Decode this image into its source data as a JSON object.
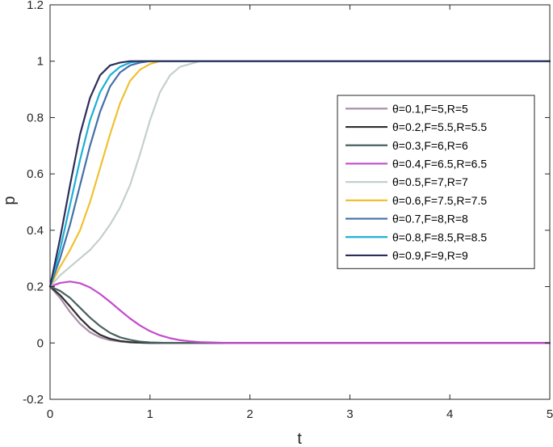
{
  "chart_data": {
    "type": "line",
    "title": "",
    "xlabel": "t",
    "ylabel": "p",
    "xlim": [
      0,
      5
    ],
    "ylim": [
      -0.2,
      1.2
    ],
    "xticks": [
      0,
      1,
      2,
      3,
      4,
      5
    ],
    "yticks": [
      -0.2,
      0,
      0.2,
      0.4,
      0.6,
      0.8,
      1,
      1.2
    ],
    "grid": false,
    "legend_position": "right",
    "x": [
      0,
      0.1,
      0.2,
      0.3,
      0.4,
      0.5,
      0.6,
      0.7,
      0.8,
      0.9,
      1.0,
      1.1,
      1.2,
      1.3,
      1.4,
      1.5,
      1.6,
      1.7,
      1.8,
      1.9,
      2.0,
      2.5,
      3.0,
      3.5,
      4.0,
      4.5,
      5.0
    ],
    "series": [
      {
        "name": "θ=0.1,F=5,R=5",
        "color": "#a98ea8",
        "values": [
          0.2,
          0.16,
          0.11,
          0.068,
          0.038,
          0.02,
          0.01,
          0.005,
          0.002,
          0.001,
          0,
          0,
          0,
          0,
          0,
          0,
          0,
          0,
          0,
          0,
          0,
          0,
          0,
          0,
          0,
          0,
          0
        ]
      },
      {
        "name": "θ=0.2,F=5.5,R=5.5",
        "color": "#2e2e2e",
        "values": [
          0.2,
          0.17,
          0.13,
          0.088,
          0.053,
          0.029,
          0.015,
          0.007,
          0.003,
          0.001,
          0,
          0,
          0,
          0,
          0,
          0,
          0,
          0,
          0,
          0,
          0,
          0,
          0,
          0,
          0,
          0,
          0
        ]
      },
      {
        "name": "θ=0.3,F=6,R=6",
        "color": "#4a6161",
        "values": [
          0.2,
          0.185,
          0.16,
          0.125,
          0.09,
          0.06,
          0.036,
          0.02,
          0.011,
          0.005,
          0.002,
          0.001,
          0,
          0,
          0,
          0,
          0,
          0,
          0,
          0,
          0,
          0,
          0,
          0,
          0,
          0,
          0
        ]
      },
      {
        "name": "θ=0.4,F=6.5,R=6.5",
        "color": "#c34bcb",
        "values": [
          0.2,
          0.213,
          0.218,
          0.212,
          0.197,
          0.174,
          0.146,
          0.116,
          0.087,
          0.062,
          0.042,
          0.027,
          0.017,
          0.01,
          0.006,
          0.003,
          0.002,
          0.001,
          0,
          0,
          0,
          0,
          0,
          0,
          0,
          0,
          0
        ]
      },
      {
        "name": "θ=0.5,F=7,R=7",
        "color": "#c3d0cc",
        "values": [
          0.2,
          0.24,
          0.27,
          0.3,
          0.33,
          0.37,
          0.42,
          0.48,
          0.56,
          0.67,
          0.79,
          0.89,
          0.95,
          0.98,
          0.99,
          1.0,
          1.0,
          1.0,
          1.0,
          1.0,
          1.0,
          1.0,
          1.0,
          1.0,
          1.0,
          1.0,
          1.0
        ]
      },
      {
        "name": "θ=0.6,F=7.5,R=7.5",
        "color": "#efc131",
        "values": [
          0.2,
          0.27,
          0.33,
          0.4,
          0.5,
          0.62,
          0.74,
          0.85,
          0.93,
          0.97,
          0.99,
          1.0,
          1.0,
          1.0,
          1.0,
          1.0,
          1.0,
          1.0,
          1.0,
          1.0,
          1.0,
          1.0,
          1.0,
          1.0,
          1.0,
          1.0,
          1.0
        ]
      },
      {
        "name": "θ=0.7,F=8,R=8",
        "color": "#4470a8",
        "values": [
          0.2,
          0.3,
          0.42,
          0.56,
          0.7,
          0.82,
          0.91,
          0.96,
          0.985,
          0.995,
          1.0,
          1.0,
          1.0,
          1.0,
          1.0,
          1.0,
          1.0,
          1.0,
          1.0,
          1.0,
          1.0,
          1.0,
          1.0,
          1.0,
          1.0,
          1.0,
          1.0
        ]
      },
      {
        "name": "θ=0.8,F=8.5,R=8.5",
        "color": "#1bb0d6",
        "values": [
          0.2,
          0.33,
          0.49,
          0.65,
          0.79,
          0.89,
          0.95,
          0.98,
          0.995,
          1.0,
          1.0,
          1.0,
          1.0,
          1.0,
          1.0,
          1.0,
          1.0,
          1.0,
          1.0,
          1.0,
          1.0,
          1.0,
          1.0,
          1.0,
          1.0,
          1.0,
          1.0
        ]
      },
      {
        "name": "θ=0.9,F=9,R=9",
        "color": "#2d2d5a",
        "values": [
          0.2,
          0.37,
          0.56,
          0.74,
          0.87,
          0.95,
          0.985,
          0.995,
          1.0,
          1.0,
          1.0,
          1.0,
          1.0,
          1.0,
          1.0,
          1.0,
          1.0,
          1.0,
          1.0,
          1.0,
          1.0,
          1.0,
          1.0,
          1.0,
          1.0,
          1.0,
          1.0
        ]
      }
    ]
  }
}
